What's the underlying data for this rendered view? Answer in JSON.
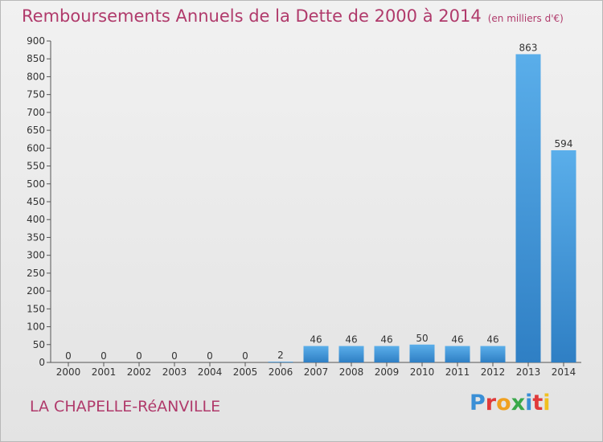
{
  "title": "Remboursements Annuels de la Dette de 2000 à 2014",
  "unit": "(en milliers d'€)",
  "place": "LA CHAPELLE-RéANVILLE",
  "brand": {
    "letters": [
      "P",
      "r",
      "o",
      "x",
      "i",
      "t",
      "i"
    ],
    "colors": [
      "#3a8fd6",
      "#e03a3a",
      "#f0a020",
      "#3aa84a",
      "#3a8fd6",
      "#e03a3a",
      "#f0c020"
    ]
  },
  "colors": {
    "title": "#b03a6b",
    "bar_light": "#5aaeea",
    "bar_dark": "#2f7fc4",
    "axis": "#555555"
  },
  "chart_data": {
    "type": "bar",
    "categories": [
      "2000",
      "2001",
      "2002",
      "2003",
      "2004",
      "2005",
      "2006",
      "2007",
      "2008",
      "2009",
      "2010",
      "2011",
      "2012",
      "2013",
      "2014"
    ],
    "values": [
      0,
      0,
      0,
      0,
      0,
      0,
      2,
      46,
      46,
      46,
      50,
      46,
      46,
      863,
      594
    ],
    "data_labels": [
      "0",
      "0",
      "0",
      "0",
      "0",
      "0",
      "2",
      "46",
      "46",
      "46",
      "50",
      "46",
      "46",
      "863",
      "594"
    ],
    "ylim": [
      0,
      900
    ],
    "yticks": [
      0,
      50,
      100,
      150,
      200,
      250,
      300,
      350,
      400,
      450,
      500,
      550,
      600,
      650,
      700,
      750,
      800,
      850,
      900
    ],
    "grid": false
  }
}
